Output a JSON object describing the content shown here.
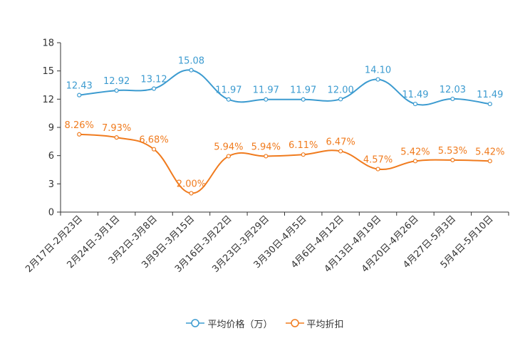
{
  "chart_data": {
    "type": "line",
    "title": "",
    "xlabel": "",
    "ylabel": "",
    "ylim": [
      0,
      18
    ],
    "yticks": [
      "0",
      "3",
      "6",
      "9",
      "12",
      "15",
      "18"
    ],
    "categories": [
      "2月17日-2月23日",
      "2月24日-3月1日",
      "3月2日-3月8日",
      "3月9日-3月15日",
      "3月16日-3月22日",
      "3月23日-3月29日",
      "3月30日-4月5日",
      "4月6日-4月12日",
      "4月13日-4月19日",
      "4月20日-4月26日",
      "4月27日-5月3日",
      "5月4日-5月10日"
    ],
    "series": [
      {
        "name": "平均价格（万）",
        "color": "#3c9bd0",
        "values": [
          12.43,
          12.92,
          13.12,
          15.08,
          11.97,
          11.97,
          11.97,
          12.0,
          14.1,
          11.49,
          12.03,
          11.49
        ],
        "labels": [
          "12.43",
          "12.92",
          "13.12",
          "15.08",
          "11.97",
          "11.97",
          "11.97",
          "12.00",
          "14.10",
          "11.49",
          "12.03",
          "11.49"
        ]
      },
      {
        "name": "平均折扣",
        "color": "#f07b1e",
        "values": [
          8.26,
          7.93,
          6.68,
          2.0,
          5.94,
          5.94,
          6.11,
          6.47,
          4.57,
          5.42,
          5.53,
          5.42
        ],
        "labels": [
          "8.26%",
          "7.93%",
          "6.68%",
          "2.00%",
          "5.94%",
          "5.94%",
          "6.11%",
          "6.47%",
          "4.57%",
          "5.42%",
          "5.53%",
          "5.42%"
        ]
      }
    ],
    "legend_position": "bottom-center"
  }
}
